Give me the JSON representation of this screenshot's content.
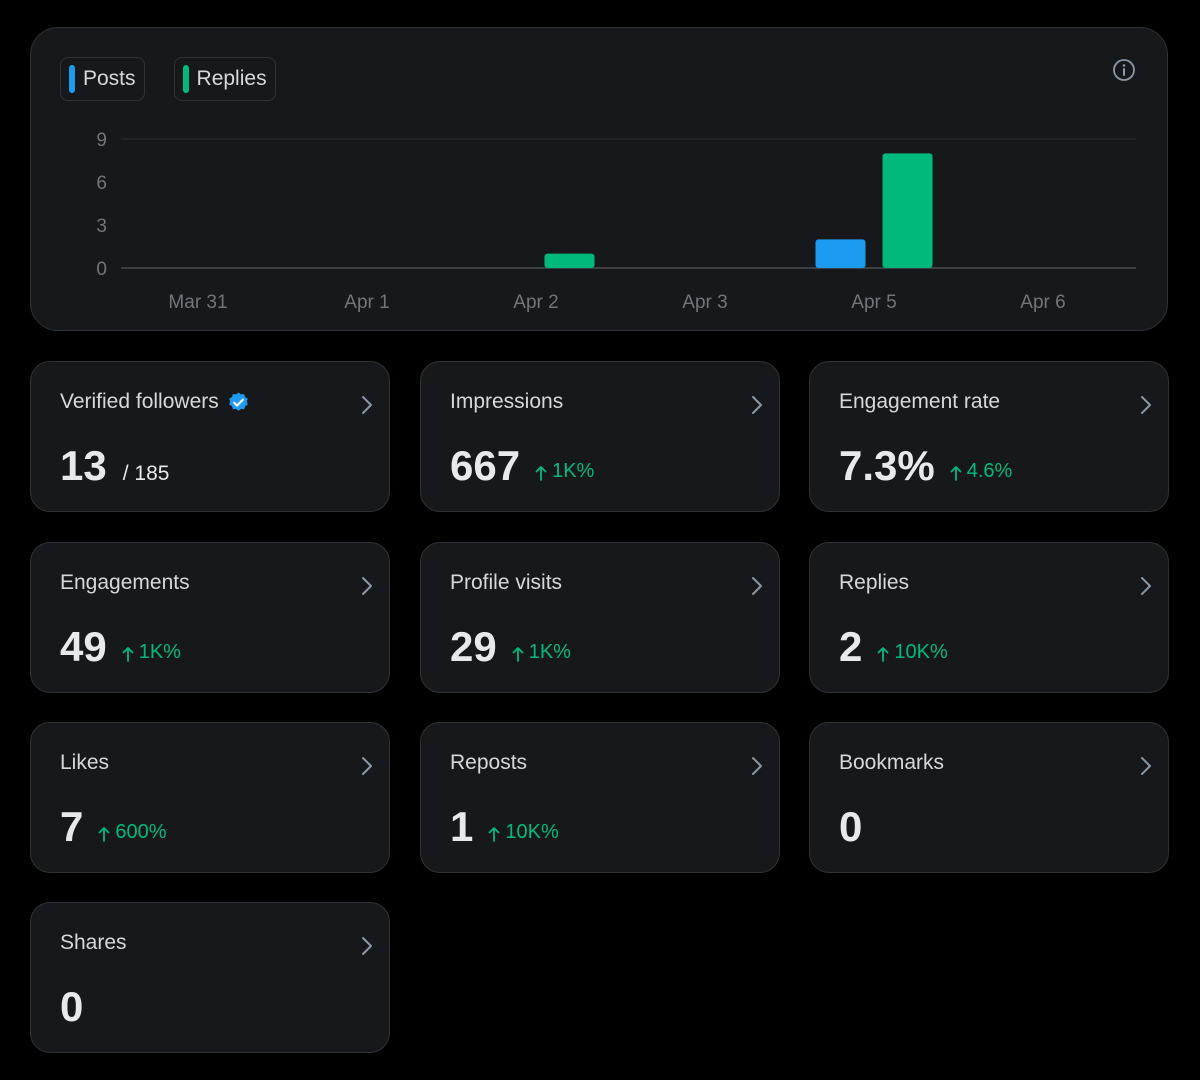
{
  "colors": {
    "posts": "#1d9bf0",
    "replies": "#00ba7c",
    "positive": "#00ba7c",
    "verified": "#1d9bf0"
  },
  "legend": [
    {
      "label": "Posts",
      "color": "#1d9bf0"
    },
    {
      "label": "Replies",
      "color": "#00ba7c"
    }
  ],
  "chart_data": {
    "type": "bar",
    "title": "",
    "xlabel": "",
    "ylabel": "",
    "categories": [
      "Mar 31",
      "Apr 1",
      "Apr 2",
      "Apr 3",
      "Apr 5",
      "Apr 6"
    ],
    "series": [
      {
        "name": "Posts",
        "values": [
          0,
          0,
          0,
          0,
          2,
          0
        ]
      },
      {
        "name": "Replies",
        "values": [
          0,
          0,
          1,
          0,
          8,
          0
        ]
      }
    ],
    "ylim": [
      0,
      9
    ],
    "yticks": [
      0,
      3,
      6,
      9
    ],
    "grid": true,
    "legend_position": "top-left"
  },
  "cards": [
    {
      "label": "Verified followers",
      "value": "13",
      "sub": "/ 185",
      "change": "",
      "verified": true
    },
    {
      "label": "Impressions",
      "value": "667",
      "sub": "",
      "change": "1K%"
    },
    {
      "label": "Engagement rate",
      "value": "7.3%",
      "sub": "",
      "change": "4.6%"
    },
    {
      "label": "Engagements",
      "value": "49",
      "sub": "",
      "change": "1K%"
    },
    {
      "label": "Profile visits",
      "value": "29",
      "sub": "",
      "change": "1K%"
    },
    {
      "label": "Replies",
      "value": "2",
      "sub": "",
      "change": "10K%"
    },
    {
      "label": "Likes",
      "value": "7",
      "sub": "",
      "change": "600%"
    },
    {
      "label": "Reposts",
      "value": "1",
      "sub": "",
      "change": "10K%"
    },
    {
      "label": "Bookmarks",
      "value": "0",
      "sub": "",
      "change": ""
    },
    {
      "label": "Shares",
      "value": "0",
      "sub": "",
      "change": ""
    }
  ]
}
